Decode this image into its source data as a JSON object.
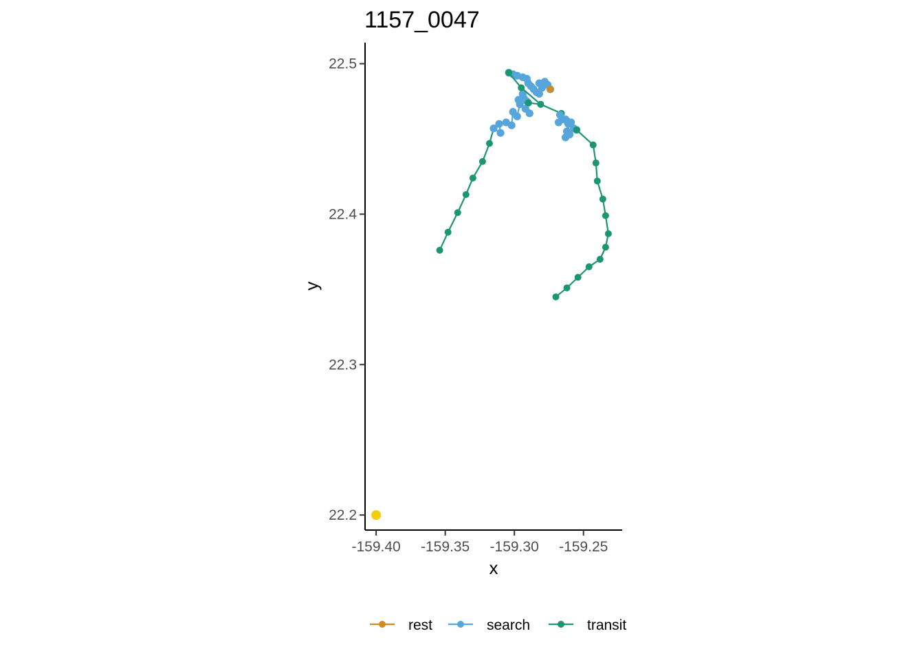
{
  "chart_data": {
    "type": "line",
    "title": "1157_0047",
    "xlabel": "x",
    "ylabel": "y",
    "xlim": [
      -159.408,
      -159.222
    ],
    "ylim": [
      22.19,
      22.514
    ],
    "x_ticks": [
      -159.4,
      -159.35,
      -159.3,
      -159.25
    ],
    "x_tick_labels": [
      "-159.40",
      "-159.35",
      "-159.30",
      "-159.25"
    ],
    "y_ticks": [
      22.2,
      22.3,
      22.4,
      22.5
    ],
    "y_tick_labels": [
      "22.2",
      "22.3",
      "22.4",
      "22.5"
    ],
    "grid": false,
    "legend_position": "bottom",
    "series": [
      {
        "name": "transit",
        "color": "#1b9670",
        "points": [
          [
            -159.354,
            22.376
          ],
          [
            -159.348,
            22.388
          ],
          [
            -159.341,
            22.401
          ],
          [
            -159.335,
            22.413
          ],
          [
            -159.33,
            22.424
          ],
          [
            -159.323,
            22.435
          ],
          [
            -159.318,
            22.447
          ],
          [
            -159.315,
            22.457
          ]
        ]
      },
      {
        "name": "search",
        "color": "#56a5dd",
        "points": [
          [
            -159.315,
            22.457
          ],
          [
            -159.31,
            22.454
          ],
          [
            -159.311,
            22.46
          ],
          [
            -159.306,
            22.461
          ],
          [
            -159.302,
            22.459
          ],
          [
            -159.301,
            22.468
          ],
          [
            -159.298,
            22.465
          ],
          [
            -159.296,
            22.473
          ],
          [
            -159.292,
            22.47
          ],
          [
            -159.289,
            22.467
          ],
          [
            -159.291,
            22.475
          ],
          [
            -159.294,
            22.48
          ],
          [
            -159.297,
            22.476
          ],
          [
            -159.293,
            22.477
          ],
          [
            -159.29,
            22.474
          ]
        ]
      },
      {
        "name": "transit",
        "color": "#1b9670",
        "points": [
          [
            -159.29,
            22.474
          ],
          [
            -159.281,
            22.473
          ],
          [
            -159.266,
            22.467
          ],
          [
            -159.257,
            22.457
          ]
        ]
      },
      {
        "name": "search",
        "color": "#56a5dd",
        "points": [
          [
            -159.257,
            22.457
          ],
          [
            -159.26,
            22.453
          ],
          [
            -159.263,
            22.451
          ],
          [
            -159.262,
            22.455
          ],
          [
            -159.259,
            22.461
          ],
          [
            -159.262,
            22.462
          ],
          [
            -159.265,
            22.463
          ],
          [
            -159.268,
            22.461
          ],
          [
            -159.267,
            22.466
          ],
          [
            -159.263,
            22.463
          ],
          [
            -159.261,
            22.46
          ],
          [
            -159.255,
            22.456
          ]
        ]
      },
      {
        "name": "transit",
        "color": "#1b9670",
        "points": [
          [
            -159.255,
            22.456
          ],
          [
            -159.243,
            22.446
          ],
          [
            -159.241,
            22.434
          ],
          [
            -159.24,
            22.422
          ],
          [
            -159.236,
            22.41
          ],
          [
            -159.234,
            22.399
          ],
          [
            -159.232,
            22.387
          ],
          [
            -159.234,
            22.378
          ],
          [
            -159.238,
            22.37
          ],
          [
            -159.246,
            22.365
          ],
          [
            -159.254,
            22.358
          ],
          [
            -159.262,
            22.351
          ],
          [
            -159.27,
            22.345
          ]
        ]
      },
      {
        "name": "search",
        "color": "#56a5dd",
        "points": [
          [
            -159.304,
            22.494
          ],
          [
            -159.301,
            22.493
          ],
          [
            -159.298,
            22.492
          ],
          [
            -159.294,
            22.491
          ],
          [
            -159.291,
            22.49
          ],
          [
            -159.29,
            22.487
          ],
          [
            -159.288,
            22.485
          ],
          [
            -159.286,
            22.483
          ],
          [
            -159.284,
            22.481
          ],
          [
            -159.282,
            22.48
          ],
          [
            -159.28,
            22.484
          ],
          [
            -159.282,
            22.487
          ],
          [
            -159.278,
            22.488
          ],
          [
            -159.276,
            22.486
          ],
          [
            -159.274,
            22.483
          ]
        ]
      },
      {
        "name": "transit",
        "color": "#1b9670",
        "points": [
          [
            -159.304,
            22.494
          ],
          [
            -159.295,
            22.484
          ],
          [
            -159.281,
            22.473
          ]
        ]
      },
      {
        "name": "rest",
        "color": "#d28b1d",
        "points": [
          [
            -159.274,
            22.483
          ]
        ]
      },
      {
        "name": "",
        "color": "#f5cc0a",
        "points": [
          [
            -159.4,
            22.2
          ]
        ]
      }
    ],
    "legend": [
      {
        "label": "rest",
        "color": "#d28b1d"
      },
      {
        "label": "search",
        "color": "#56a5dd"
      },
      {
        "label": "transit",
        "color": "#1b9670"
      }
    ]
  }
}
